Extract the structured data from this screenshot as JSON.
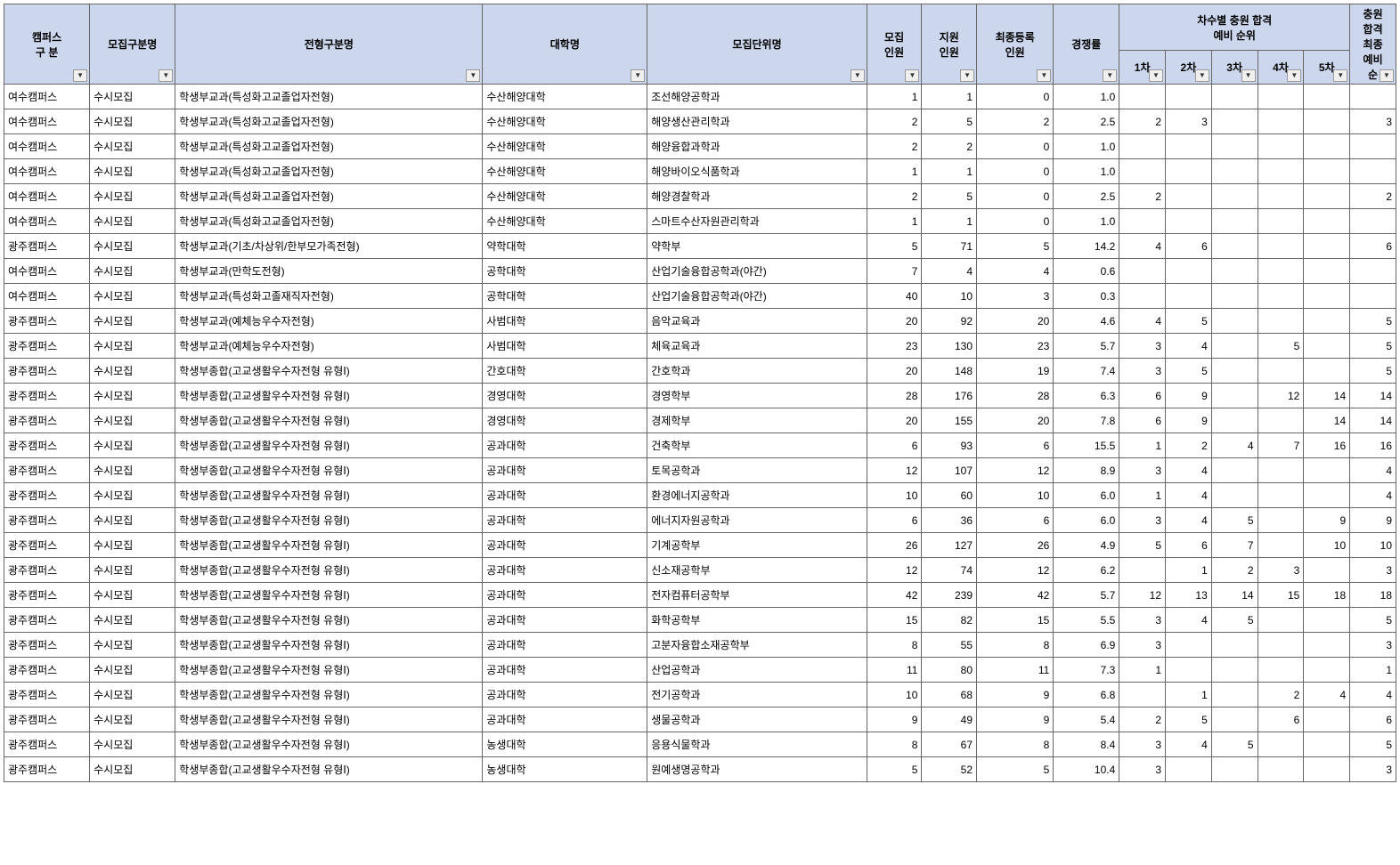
{
  "headerGroup": {
    "campus": "캠퍼스\n구 분",
    "recruitType": "모집구분명",
    "admissionType": "전형구분명",
    "college": "대학명",
    "department": "모집단위명",
    "quota": "모집\n인원",
    "applicants": "지원\n인원",
    "finalReg": "최종등록\n인원",
    "ratio": "경쟁률",
    "roundsGroup": "차수별 충원 합격\n예비 순위",
    "r1": "1차",
    "r2": "2차",
    "r3": "3차",
    "r4": "4차",
    "r5": "5차",
    "finalWait": "충원\n합격\n최종\n예비\n순"
  },
  "columns": [
    "campus",
    "recruitType",
    "admissionType",
    "college",
    "department",
    "quota",
    "applicants",
    "finalReg",
    "ratio",
    "r1",
    "r2",
    "r3",
    "r4",
    "r5",
    "finalWait"
  ],
  "numericCols": [
    "quota",
    "applicants",
    "finalReg",
    "ratio",
    "r1",
    "r2",
    "r3",
    "r4",
    "r5",
    "finalWait"
  ],
  "rows": [
    {
      "campus": "여수캠퍼스",
      "recruitType": "수시모집",
      "admissionType": "학생부교과(특성화고교졸업자전형)",
      "college": "수산해양대학",
      "department": "조선해양공학과",
      "quota": "1",
      "applicants": "1",
      "finalReg": "0",
      "ratio": "1.0",
      "r1": "",
      "r2": "",
      "r3": "",
      "r4": "",
      "r5": "",
      "finalWait": ""
    },
    {
      "campus": "여수캠퍼스",
      "recruitType": "수시모집",
      "admissionType": "학생부교과(특성화고교졸업자전형)",
      "college": "수산해양대학",
      "department": "해양생산관리학과",
      "quota": "2",
      "applicants": "5",
      "finalReg": "2",
      "ratio": "2.5",
      "r1": "2",
      "r2": "3",
      "r3": "",
      "r4": "",
      "r5": "",
      "finalWait": "3"
    },
    {
      "campus": "여수캠퍼스",
      "recruitType": "수시모집",
      "admissionType": "학생부교과(특성화고교졸업자전형)",
      "college": "수산해양대학",
      "department": "해양융합과학과",
      "quota": "2",
      "applicants": "2",
      "finalReg": "0",
      "ratio": "1.0",
      "r1": "",
      "r2": "",
      "r3": "",
      "r4": "",
      "r5": "",
      "finalWait": ""
    },
    {
      "campus": "여수캠퍼스",
      "recruitType": "수시모집",
      "admissionType": "학생부교과(특성화고교졸업자전형)",
      "college": "수산해양대학",
      "department": "해양바이오식품학과",
      "quota": "1",
      "applicants": "1",
      "finalReg": "0",
      "ratio": "1.0",
      "r1": "",
      "r2": "",
      "r3": "",
      "r4": "",
      "r5": "",
      "finalWait": ""
    },
    {
      "campus": "여수캠퍼스",
      "recruitType": "수시모집",
      "admissionType": "학생부교과(특성화고교졸업자전형)",
      "college": "수산해양대학",
      "department": "해양경찰학과",
      "quota": "2",
      "applicants": "5",
      "finalReg": "0",
      "ratio": "2.5",
      "r1": "2",
      "r2": "",
      "r3": "",
      "r4": "",
      "r5": "",
      "finalWait": "2"
    },
    {
      "campus": "여수캠퍼스",
      "recruitType": "수시모집",
      "admissionType": "학생부교과(특성화고교졸업자전형)",
      "college": "수산해양대학",
      "department": "스마트수산자원관리학과",
      "quota": "1",
      "applicants": "1",
      "finalReg": "0",
      "ratio": "1.0",
      "r1": "",
      "r2": "",
      "r3": "",
      "r4": "",
      "r5": "",
      "finalWait": ""
    },
    {
      "campus": "광주캠퍼스",
      "recruitType": "수시모집",
      "admissionType": "학생부교과(기초/차상위/한부모가족전형)",
      "college": "약학대학",
      "department": "약학부",
      "quota": "5",
      "applicants": "71",
      "finalReg": "5",
      "ratio": "14.2",
      "r1": "4",
      "r2": "6",
      "r3": "",
      "r4": "",
      "r5": "",
      "finalWait": "6"
    },
    {
      "campus": "여수캠퍼스",
      "recruitType": "수시모집",
      "admissionType": "학생부교과(만학도전형)",
      "college": "공학대학",
      "department": "산업기술융합공학과(야간)",
      "quota": "7",
      "applicants": "4",
      "finalReg": "4",
      "ratio": "0.6",
      "r1": "",
      "r2": "",
      "r3": "",
      "r4": "",
      "r5": "",
      "finalWait": ""
    },
    {
      "campus": "여수캠퍼스",
      "recruitType": "수시모집",
      "admissionType": "학생부교과(특성화고졸재직자전형)",
      "college": "공학대학",
      "department": "산업기술융합공학과(야간)",
      "quota": "40",
      "applicants": "10",
      "finalReg": "3",
      "ratio": "0.3",
      "r1": "",
      "r2": "",
      "r3": "",
      "r4": "",
      "r5": "",
      "finalWait": ""
    },
    {
      "campus": "광주캠퍼스",
      "recruitType": "수시모집",
      "admissionType": "학생부교과(예체능우수자전형)",
      "college": "사범대학",
      "department": "음악교육과",
      "quota": "20",
      "applicants": "92",
      "finalReg": "20",
      "ratio": "4.6",
      "r1": "4",
      "r2": "5",
      "r3": "",
      "r4": "",
      "r5": "",
      "finalWait": "5"
    },
    {
      "campus": "광주캠퍼스",
      "recruitType": "수시모집",
      "admissionType": "학생부교과(예체능우수자전형)",
      "college": "사범대학",
      "department": "체육교육과",
      "quota": "23",
      "applicants": "130",
      "finalReg": "23",
      "ratio": "5.7",
      "r1": "3",
      "r2": "4",
      "r3": "",
      "r4": "5",
      "r5": "",
      "finalWait": "5"
    },
    {
      "campus": "광주캠퍼스",
      "recruitType": "수시모집",
      "admissionType": "학생부종합(고교생활우수자전형 유형Ⅰ)",
      "college": "간호대학",
      "department": "간호학과",
      "quota": "20",
      "applicants": "148",
      "finalReg": "19",
      "ratio": "7.4",
      "r1": "3",
      "r2": "5",
      "r3": "",
      "r4": "",
      "r5": "",
      "finalWait": "5"
    },
    {
      "campus": "광주캠퍼스",
      "recruitType": "수시모집",
      "admissionType": "학생부종합(고교생활우수자전형 유형Ⅰ)",
      "college": "경영대학",
      "department": "경영학부",
      "quota": "28",
      "applicants": "176",
      "finalReg": "28",
      "ratio": "6.3",
      "r1": "6",
      "r2": "9",
      "r3": "",
      "r4": "12",
      "r5": "14",
      "finalWait": "14"
    },
    {
      "campus": "광주캠퍼스",
      "recruitType": "수시모집",
      "admissionType": "학생부종합(고교생활우수자전형 유형Ⅰ)",
      "college": "경영대학",
      "department": "경제학부",
      "quota": "20",
      "applicants": "155",
      "finalReg": "20",
      "ratio": "7.8",
      "r1": "6",
      "r2": "9",
      "r3": "",
      "r4": "",
      "r5": "14",
      "finalWait": "14"
    },
    {
      "campus": "광주캠퍼스",
      "recruitType": "수시모집",
      "admissionType": "학생부종합(고교생활우수자전형 유형Ⅰ)",
      "college": "공과대학",
      "department": "건축학부",
      "quota": "6",
      "applicants": "93",
      "finalReg": "6",
      "ratio": "15.5",
      "r1": "1",
      "r2": "2",
      "r3": "4",
      "r4": "7",
      "r5": "16",
      "finalWait": "16"
    },
    {
      "campus": "광주캠퍼스",
      "recruitType": "수시모집",
      "admissionType": "학생부종합(고교생활우수자전형 유형Ⅰ)",
      "college": "공과대학",
      "department": "토목공학과",
      "quota": "12",
      "applicants": "107",
      "finalReg": "12",
      "ratio": "8.9",
      "r1": "3",
      "r2": "4",
      "r3": "",
      "r4": "",
      "r5": "",
      "finalWait": "4"
    },
    {
      "campus": "광주캠퍼스",
      "recruitType": "수시모집",
      "admissionType": "학생부종합(고교생활우수자전형 유형Ⅰ)",
      "college": "공과대학",
      "department": "환경에너지공학과",
      "quota": "10",
      "applicants": "60",
      "finalReg": "10",
      "ratio": "6.0",
      "r1": "1",
      "r2": "4",
      "r3": "",
      "r4": "",
      "r5": "",
      "finalWait": "4"
    },
    {
      "campus": "광주캠퍼스",
      "recruitType": "수시모집",
      "admissionType": "학생부종합(고교생활우수자전형 유형Ⅰ)",
      "college": "공과대학",
      "department": "에너지자원공학과",
      "quota": "6",
      "applicants": "36",
      "finalReg": "6",
      "ratio": "6.0",
      "r1": "3",
      "r2": "4",
      "r3": "5",
      "r4": "",
      "r5": "9",
      "finalWait": "9"
    },
    {
      "campus": "광주캠퍼스",
      "recruitType": "수시모집",
      "admissionType": "학생부종합(고교생활우수자전형 유형Ⅰ)",
      "college": "공과대학",
      "department": "기계공학부",
      "quota": "26",
      "applicants": "127",
      "finalReg": "26",
      "ratio": "4.9",
      "r1": "5",
      "r2": "6",
      "r3": "7",
      "r4": "",
      "r5": "10",
      "finalWait": "10"
    },
    {
      "campus": "광주캠퍼스",
      "recruitType": "수시모집",
      "admissionType": "학생부종합(고교생활우수자전형 유형Ⅰ)",
      "college": "공과대학",
      "department": "신소재공학부",
      "quota": "12",
      "applicants": "74",
      "finalReg": "12",
      "ratio": "6.2",
      "r1": "",
      "r2": "1",
      "r3": "2",
      "r4": "3",
      "r5": "",
      "finalWait": "3"
    },
    {
      "campus": "광주캠퍼스",
      "recruitType": "수시모집",
      "admissionType": "학생부종합(고교생활우수자전형 유형Ⅰ)",
      "college": "공과대학",
      "department": "전자컴퓨터공학부",
      "quota": "42",
      "applicants": "239",
      "finalReg": "42",
      "ratio": "5.7",
      "r1": "12",
      "r2": "13",
      "r3": "14",
      "r4": "15",
      "r5": "18",
      "finalWait": "18"
    },
    {
      "campus": "광주캠퍼스",
      "recruitType": "수시모집",
      "admissionType": "학생부종합(고교생활우수자전형 유형Ⅰ)",
      "college": "공과대학",
      "department": "화학공학부",
      "quota": "15",
      "applicants": "82",
      "finalReg": "15",
      "ratio": "5.5",
      "r1": "3",
      "r2": "4",
      "r3": "5",
      "r4": "",
      "r5": "",
      "finalWait": "5"
    },
    {
      "campus": "광주캠퍼스",
      "recruitType": "수시모집",
      "admissionType": "학생부종합(고교생활우수자전형 유형Ⅰ)",
      "college": "공과대학",
      "department": "고분자융합소재공학부",
      "quota": "8",
      "applicants": "55",
      "finalReg": "8",
      "ratio": "6.9",
      "r1": "3",
      "r2": "",
      "r3": "",
      "r4": "",
      "r5": "",
      "finalWait": "3"
    },
    {
      "campus": "광주캠퍼스",
      "recruitType": "수시모집",
      "admissionType": "학생부종합(고교생활우수자전형 유형Ⅰ)",
      "college": "공과대학",
      "department": "산업공학과",
      "quota": "11",
      "applicants": "80",
      "finalReg": "11",
      "ratio": "7.3",
      "r1": "1",
      "r2": "",
      "r3": "",
      "r4": "",
      "r5": "",
      "finalWait": "1"
    },
    {
      "campus": "광주캠퍼스",
      "recruitType": "수시모집",
      "admissionType": "학생부종합(고교생활우수자전형 유형Ⅰ)",
      "college": "공과대학",
      "department": "전기공학과",
      "quota": "10",
      "applicants": "68",
      "finalReg": "9",
      "ratio": "6.8",
      "r1": "",
      "r2": "1",
      "r3": "",
      "r4": "2",
      "r5": "4",
      "finalWait": "4"
    },
    {
      "campus": "광주캠퍼스",
      "recruitType": "수시모집",
      "admissionType": "학생부종합(고교생활우수자전형 유형Ⅰ)",
      "college": "공과대학",
      "department": "생물공학과",
      "quota": "9",
      "applicants": "49",
      "finalReg": "9",
      "ratio": "5.4",
      "r1": "2",
      "r2": "5",
      "r3": "",
      "r4": "6",
      "r5": "",
      "finalWait": "6"
    },
    {
      "campus": "광주캠퍼스",
      "recruitType": "수시모집",
      "admissionType": "학생부종합(고교생활우수자전형 유형Ⅰ)",
      "college": "농생대학",
      "department": "응용식물학과",
      "quota": "8",
      "applicants": "67",
      "finalReg": "8",
      "ratio": "8.4",
      "r1": "3",
      "r2": "4",
      "r3": "5",
      "r4": "",
      "r5": "",
      "finalWait": "5"
    },
    {
      "campus": "광주캠퍼스",
      "recruitType": "수시모집",
      "admissionType": "학생부종합(고교생활우수자전형 유형Ⅰ)",
      "college": "농생대학",
      "department": "원예생명공학과",
      "quota": "5",
      "applicants": "52",
      "finalReg": "5",
      "ratio": "10.4",
      "r1": "3",
      "r2": "",
      "r3": "",
      "r4": "",
      "r5": "",
      "finalWait": "3"
    }
  ],
  "style": {
    "headerBg": "#ccd7ed",
    "border": "#666666",
    "fontSize": 12
  }
}
